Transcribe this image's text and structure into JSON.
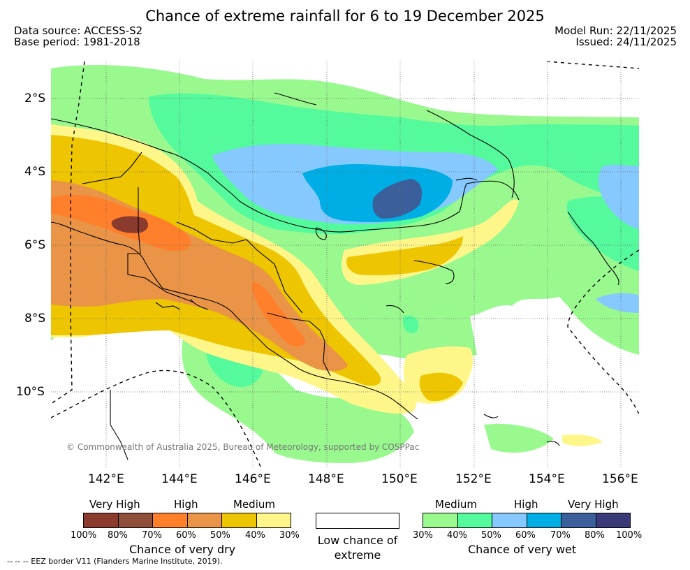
{
  "title": "Chance of extreme rainfall for 6 to 19 December 2025",
  "meta": {
    "data_source": "Data source: ACCESS-S2",
    "base_period": "Base period: 1981-2018",
    "model_run": "Model Run: 22/11/2025",
    "issued": "Issued: 24/11/2025"
  },
  "map": {
    "lat_labels": [
      "2°S",
      "4°S",
      "6°S",
      "8°S",
      "10°S"
    ],
    "lon_labels": [
      "142°E",
      "144°E",
      "146°E",
      "148°E",
      "150°E",
      "152°E",
      "154°E",
      "156°E"
    ],
    "copyright": "© Commonwealth of Australia 2025, Bureau of Meteorology, supported by COSPPac"
  },
  "legend": {
    "dry": {
      "categories": [
        "Very High",
        "High",
        "Medium"
      ],
      "colors": [
        "#8b3a2e",
        "#8f4f3a",
        "#ff7f2a",
        "#ea9447",
        "#edc500",
        "#fff68a"
      ],
      "tick_labels": [
        "100%",
        "80%",
        "70%",
        "60%",
        "50%",
        "40%",
        "30%"
      ],
      "title": "Chance of very dry"
    },
    "low": {
      "label": "Low chance of extreme"
    },
    "wet": {
      "categories": [
        "Medium",
        "High",
        "Very High"
      ],
      "colors": [
        "#99f98f",
        "#55fa9d",
        "#86c9ff",
        "#00aee6",
        "#3a5f9a",
        "#3a3a78"
      ],
      "tick_labels": [
        "30%",
        "40%",
        "50%",
        "60%",
        "70%",
        "80%",
        "100%"
      ],
      "title": "Chance of very wet"
    }
  },
  "eez_note": "-- -- -- EEZ border V11 (Flanders Marine Institute, 2019)."
}
